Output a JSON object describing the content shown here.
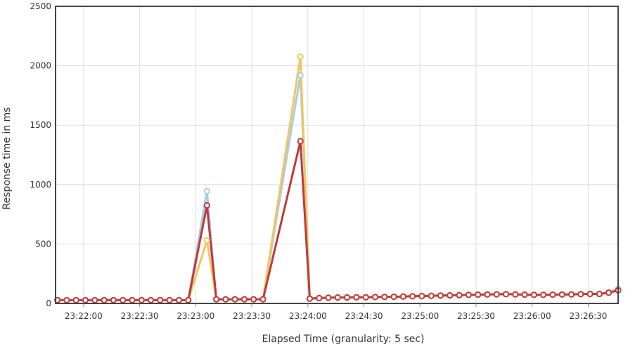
{
  "chart_data": {
    "type": "line",
    "title": "",
    "xlabel": "Elapsed Time (granularity: 5 sec)",
    "ylabel": "Response time in ms",
    "ylim": [
      0,
      2500
    ],
    "y_ticks": [
      0,
      500,
      1000,
      1500,
      2000,
      2500
    ],
    "x_tick_labels": [
      "23:22:00",
      "23:22:30",
      "23:23:00",
      "23:23:30",
      "23:24:00",
      "23:24:30",
      "23:25:00",
      "23:25:30",
      "23:26:00",
      "23:26:30"
    ],
    "x_tick_seconds": [
      85320,
      85350,
      85380,
      85410,
      85440,
      85470,
      85500,
      85530,
      85560,
      85590
    ],
    "xlim_seconds": [
      85305,
      85606
    ],
    "grid": true,
    "legend": "none",
    "series": [
      {
        "color": "#a9cce6",
        "points": [
          [
            85306,
            28
          ],
          [
            85311,
            27
          ],
          [
            85316,
            27
          ],
          [
            85321,
            28
          ],
          [
            85326,
            27
          ],
          [
            85331,
            27
          ],
          [
            85336,
            28
          ],
          [
            85341,
            27
          ],
          [
            85346,
            27
          ],
          [
            85351,
            28
          ],
          [
            85356,
            27
          ],
          [
            85361,
            28
          ],
          [
            85366,
            27
          ],
          [
            85371,
            27
          ],
          [
            85376,
            28
          ],
          [
            85386,
            945
          ],
          [
            85391,
            35
          ],
          [
            85396,
            35
          ],
          [
            85401,
            35
          ],
          [
            85406,
            35
          ],
          [
            85411,
            35
          ],
          [
            85416,
            35
          ],
          [
            85436,
            1920
          ],
          [
            85441,
            40
          ],
          [
            85446,
            45
          ],
          [
            85451,
            48
          ],
          [
            85456,
            50
          ],
          [
            85461,
            50
          ],
          [
            85466,
            52
          ],
          [
            85471,
            52
          ],
          [
            85476,
            54
          ],
          [
            85481,
            55
          ],
          [
            85486,
            56
          ],
          [
            85491,
            58
          ],
          [
            85496,
            60
          ],
          [
            85501,
            62
          ],
          [
            85506,
            64
          ],
          [
            85511,
            66
          ],
          [
            85516,
            68
          ],
          [
            85521,
            70
          ],
          [
            85526,
            72
          ],
          [
            85531,
            74
          ],
          [
            85536,
            75
          ],
          [
            85541,
            77
          ],
          [
            85546,
            78
          ],
          [
            85551,
            76
          ],
          [
            85556,
            74
          ],
          [
            85561,
            72
          ],
          [
            85566,
            72
          ],
          [
            85571,
            74
          ],
          [
            85576,
            75
          ],
          [
            85581,
            76
          ],
          [
            85586,
            78
          ],
          [
            85591,
            80
          ],
          [
            85596,
            80
          ],
          [
            85601,
            95
          ],
          [
            85606,
            125
          ]
        ]
      },
      {
        "color": "#f0c75e",
        "points": [
          [
            85306,
            28
          ],
          [
            85311,
            27
          ],
          [
            85316,
            27
          ],
          [
            85321,
            28
          ],
          [
            85326,
            27
          ],
          [
            85331,
            27
          ],
          [
            85336,
            28
          ],
          [
            85341,
            27
          ],
          [
            85346,
            27
          ],
          [
            85351,
            28
          ],
          [
            85356,
            27
          ],
          [
            85361,
            28
          ],
          [
            85366,
            27
          ],
          [
            85371,
            27
          ],
          [
            85376,
            28
          ],
          [
            85386,
            530
          ],
          [
            85391,
            35
          ],
          [
            85396,
            35
          ],
          [
            85401,
            35
          ],
          [
            85406,
            35
          ],
          [
            85411,
            35
          ],
          [
            85416,
            35
          ],
          [
            85436,
            2075
          ],
          [
            85441,
            40
          ],
          [
            85446,
            45
          ],
          [
            85451,
            48
          ],
          [
            85456,
            50
          ],
          [
            85461,
            50
          ],
          [
            85466,
            52
          ],
          [
            85471,
            52
          ],
          [
            85476,
            54
          ],
          [
            85481,
            55
          ],
          [
            85486,
            56
          ],
          [
            85491,
            58
          ],
          [
            85496,
            60
          ],
          [
            85501,
            62
          ],
          [
            85506,
            64
          ],
          [
            85511,
            66
          ],
          [
            85516,
            68
          ],
          [
            85521,
            70
          ],
          [
            85526,
            72
          ],
          [
            85531,
            74
          ],
          [
            85536,
            75
          ],
          [
            85541,
            77
          ],
          [
            85546,
            78
          ],
          [
            85551,
            76
          ],
          [
            85556,
            74
          ],
          [
            85561,
            72
          ],
          [
            85566,
            72
          ],
          [
            85571,
            74
          ],
          [
            85576,
            75
          ],
          [
            85581,
            76
          ],
          [
            85586,
            78
          ],
          [
            85591,
            80
          ],
          [
            85596,
            80
          ],
          [
            85601,
            95
          ],
          [
            85606,
            115
          ]
        ]
      },
      {
        "color": "#c0393b",
        "points": [
          [
            85306,
            28
          ],
          [
            85311,
            27
          ],
          [
            85316,
            27
          ],
          [
            85321,
            28
          ],
          [
            85326,
            27
          ],
          [
            85331,
            27
          ],
          [
            85336,
            28
          ],
          [
            85341,
            27
          ],
          [
            85346,
            27
          ],
          [
            85351,
            28
          ],
          [
            85356,
            27
          ],
          [
            85361,
            28
          ],
          [
            85366,
            27
          ],
          [
            85371,
            27
          ],
          [
            85376,
            28
          ],
          [
            85386,
            825
          ],
          [
            85391,
            35
          ],
          [
            85396,
            35
          ],
          [
            85401,
            35
          ],
          [
            85406,
            35
          ],
          [
            85411,
            35
          ],
          [
            85416,
            35
          ],
          [
            85436,
            1365
          ],
          [
            85441,
            40
          ],
          [
            85446,
            45
          ],
          [
            85451,
            48
          ],
          [
            85456,
            50
          ],
          [
            85461,
            50
          ],
          [
            85466,
            52
          ],
          [
            85471,
            52
          ],
          [
            85476,
            54
          ],
          [
            85481,
            55
          ],
          [
            85486,
            56
          ],
          [
            85491,
            58
          ],
          [
            85496,
            60
          ],
          [
            85501,
            62
          ],
          [
            85506,
            64
          ],
          [
            85511,
            66
          ],
          [
            85516,
            68
          ],
          [
            85521,
            70
          ],
          [
            85526,
            72
          ],
          [
            85531,
            74
          ],
          [
            85536,
            75
          ],
          [
            85541,
            77
          ],
          [
            85546,
            78
          ],
          [
            85551,
            76
          ],
          [
            85556,
            74
          ],
          [
            85561,
            72
          ],
          [
            85566,
            72
          ],
          [
            85571,
            74
          ],
          [
            85576,
            75
          ],
          [
            85581,
            76
          ],
          [
            85586,
            78
          ],
          [
            85591,
            80
          ],
          [
            85596,
            80
          ],
          [
            85601,
            90
          ],
          [
            85606,
            110
          ]
        ]
      }
    ]
  }
}
